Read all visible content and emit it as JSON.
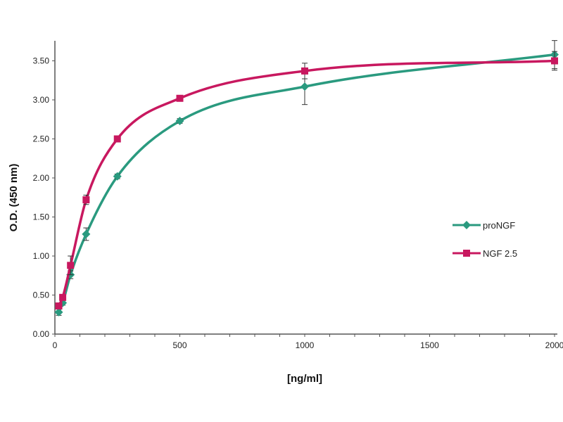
{
  "chart_data": {
    "type": "line",
    "title": "",
    "xlabel": "[ng/ml]",
    "ylabel": "O.D. (450 nm)",
    "xlim": [
      0,
      2000
    ],
    "ylim": [
      0,
      3.5
    ],
    "xticks": [
      0,
      500,
      1000,
      1500,
      2000
    ],
    "xtick_labels": [
      "0",
      "500",
      "1000",
      "1500",
      "2000"
    ],
    "x_minor_step": 100,
    "yticks": [
      0,
      0.5,
      1,
      1.5,
      2,
      2.5,
      3,
      3.5
    ],
    "ytick_labels": [
      "0.00",
      "0.50",
      "1.00",
      "1.50",
      "2.00",
      "2.50",
      "3.00",
      "3.50"
    ],
    "grid": false,
    "legend_position": "right",
    "x": [
      15.6,
      31.25,
      62.5,
      125,
      250,
      500,
      1000,
      2000
    ],
    "series": [
      {
        "name": "proNGF",
        "color": "#2a9a7f",
        "marker": "diamond",
        "values": [
          0.28,
          0.4,
          0.76,
          1.28,
          2.02,
          2.73,
          3.17,
          3.58
        ],
        "errors": [
          0.04,
          0.03,
          0.05,
          0.08,
          0.03,
          0.03,
          0.23,
          0.18
        ]
      },
      {
        "name": "NGF 2.5",
        "color": "#c8185f",
        "marker": "square",
        "values": [
          0.36,
          0.47,
          0.88,
          1.72,
          2.5,
          3.02,
          3.37,
          3.5
        ],
        "errors": [
          0.03,
          0.03,
          0.12,
          0.06,
          0.03,
          0.03,
          0.1,
          0.12
        ]
      }
    ]
  }
}
